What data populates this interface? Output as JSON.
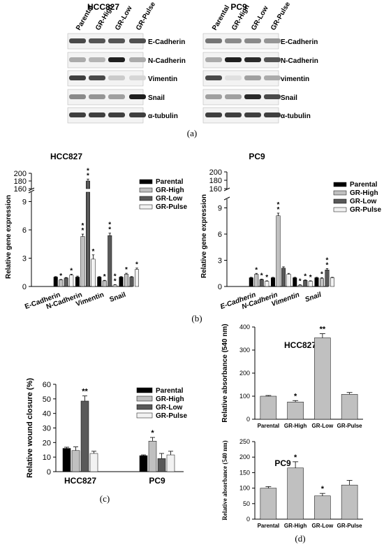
{
  "figure": {
    "panel_labels": [
      "(a)",
      "(b)",
      "(c)",
      "(d)"
    ]
  },
  "blot": {
    "panels": [
      {
        "title": "HCC827",
        "lanes": [
          "Parental",
          "GR-High",
          "GR-Low",
          "GR-Pulse"
        ],
        "proteins": [
          "E-Cadherin",
          "N-Cadherin",
          "Vimentin",
          "Snail",
          "α-tubulin"
        ],
        "band_intensity": [
          [
            0.75,
            0.7,
            0.7,
            0.72
          ],
          [
            0.3,
            0.25,
            0.95,
            0.3
          ],
          [
            0.8,
            0.75,
            0.15,
            0.1
          ],
          [
            0.45,
            0.4,
            0.35,
            0.95
          ],
          [
            0.8,
            0.8,
            0.8,
            0.8
          ]
        ]
      },
      {
        "title": "PC9",
        "lanes": [
          "Parental",
          "GR-High",
          "GR-Low",
          "GR-Pulse"
        ],
        "proteins": [
          "E-Cadherin",
          "N-Cadherin",
          "vimentin",
          "Snail",
          "α-tubulin"
        ],
        "band_intensity": [
          [
            0.55,
            0.45,
            0.45,
            0.4
          ],
          [
            0.3,
            0.95,
            0.9,
            0.7
          ],
          [
            0.75,
            0.05,
            0.35,
            0.3
          ],
          [
            0.35,
            0.35,
            0.9,
            0.75
          ],
          [
            0.8,
            0.8,
            0.8,
            0.8
          ]
        ]
      }
    ]
  },
  "chart_data": [
    {
      "type": "bar",
      "title": "HCC827",
      "ylabel": "Relative gene expression",
      "categories": [
        "E-Cadherin",
        "N-Cadherin",
        "Vimentin",
        "Snail"
      ],
      "ylim_lower": [
        0,
        10
      ],
      "ylim_upper": [
        160,
        200
      ],
      "yticks_lower": [
        0,
        3,
        6,
        9
      ],
      "yticks_upper": [
        160,
        180,
        200
      ],
      "series": [
        {
          "name": "Parental",
          "values": [
            1.0,
            1.0,
            1.0,
            1.0
          ],
          "err": [
            0.05,
            0.1,
            0.05,
            0.05
          ],
          "sig": [
            "",
            "",
            "",
            ""
          ]
        },
        {
          "name": "GR-High",
          "values": [
            0.7,
            5.3,
            0.6,
            1.3
          ],
          "err": [
            0.05,
            0.25,
            0.05,
            0.1
          ],
          "sig": [
            "*",
            "**",
            "*",
            "*"
          ]
        },
        {
          "name": "GR-Low",
          "values": [
            0.9,
            180,
            5.4,
            1.0
          ],
          "err": [
            0.05,
            5,
            0.25,
            0.05
          ],
          "sig": [
            "",
            "**",
            "**",
            ""
          ]
        },
        {
          "name": "GR-Pulse",
          "values": [
            1.2,
            2.9,
            0.15,
            1.8
          ],
          "err": [
            0.1,
            0.45,
            0.05,
            0.15
          ],
          "sig": [
            "*",
            "*",
            "**",
            "*"
          ]
        }
      ],
      "legend_position": "right"
    },
    {
      "type": "bar",
      "title": "PC9",
      "ylabel": "Relative gene expression",
      "categories": [
        "E-Cadherin",
        "N-Cadherin",
        "Vimentin",
        "Snail"
      ],
      "ylim_lower": [
        0,
        10
      ],
      "ylim_upper": [
        160,
        200
      ],
      "yticks_lower": [
        0,
        3,
        6,
        9
      ],
      "yticks_upper": [
        160,
        180,
        200
      ],
      "series": [
        {
          "name": "Parental",
          "values": [
            1.0,
            1.0,
            1.0,
            1.0
          ],
          "err": [
            0.05,
            0.05,
            0.05,
            0.05
          ],
          "sig": [
            "",
            "",
            "",
            ""
          ]
        },
        {
          "name": "GR-High",
          "values": [
            1.4,
            8.1,
            0.15,
            0.9
          ],
          "err": [
            0.1,
            0.3,
            0.05,
            0.1
          ],
          "sig": [
            "*",
            "**",
            "*",
            "*"
          ]
        },
        {
          "name": "GR-Low",
          "values": [
            0.8,
            2.1,
            0.7,
            1.9
          ],
          "err": [
            0.05,
            0.15,
            0.05,
            0.15
          ],
          "sig": [
            "*",
            "",
            "*",
            "**"
          ]
        },
        {
          "name": "GR-Pulse",
          "values": [
            0.6,
            1.4,
            0.6,
            1.0
          ],
          "err": [
            0.05,
            0.1,
            0.05,
            0.05
          ],
          "sig": [
            "*",
            "",
            "*",
            ""
          ]
        }
      ],
      "legend_position": "right"
    },
    {
      "type": "bar",
      "title": "",
      "ylabel": "Relative wound closure (%)",
      "categories": [
        "HCC827",
        "PC9"
      ],
      "ylim": [
        0,
        60
      ],
      "yticks": [
        0,
        10,
        20,
        30,
        40,
        50,
        60
      ],
      "series": [
        {
          "name": "Parental",
          "values": [
            16,
            11
          ],
          "err": [
            0.8,
            0.5
          ],
          "sig": [
            "",
            ""
          ]
        },
        {
          "name": "GR-High",
          "values": [
            14.5,
            21
          ],
          "err": [
            2.5,
            2.5
          ],
          "sig": [
            "",
            "*"
          ]
        },
        {
          "name": "GR-Low",
          "values": [
            48.5,
            9
          ],
          "err": [
            3.5,
            3.5
          ],
          "sig": [
            "**",
            ""
          ]
        },
        {
          "name": "GR-Pulse",
          "values": [
            12.5,
            11.5
          ],
          "err": [
            1.5,
            2.5
          ],
          "sig": [
            "",
            ""
          ]
        }
      ],
      "legend_position": "top-right"
    },
    {
      "type": "bar",
      "title": "HCC827",
      "ylabel": "Relative absorbance (540 nm)",
      "categories": [
        "Parental",
        "GR-High",
        "GR-Low",
        "GR-Pulse"
      ],
      "ylim": [
        0,
        400
      ],
      "yticks": [
        0,
        100,
        200,
        300,
        400
      ],
      "values": [
        100,
        75,
        353,
        108
      ],
      "err": [
        3,
        6,
        18,
        8
      ],
      "sig": [
        "",
        "*",
        "**",
        ""
      ]
    },
    {
      "type": "bar",
      "title": "PC9",
      "ylabel": "Relative absorbance (540 nm)",
      "categories": [
        "Parental",
        "GR-High",
        "GR-Low",
        "GR-Pulse"
      ],
      "ylim": [
        0,
        250
      ],
      "yticks": [
        0,
        50,
        100,
        150,
        200,
        250
      ],
      "values": [
        100,
        165,
        75,
        110
      ],
      "err": [
        5,
        20,
        8,
        15
      ],
      "sig": [
        "",
        "*",
        "*",
        ""
      ]
    }
  ]
}
